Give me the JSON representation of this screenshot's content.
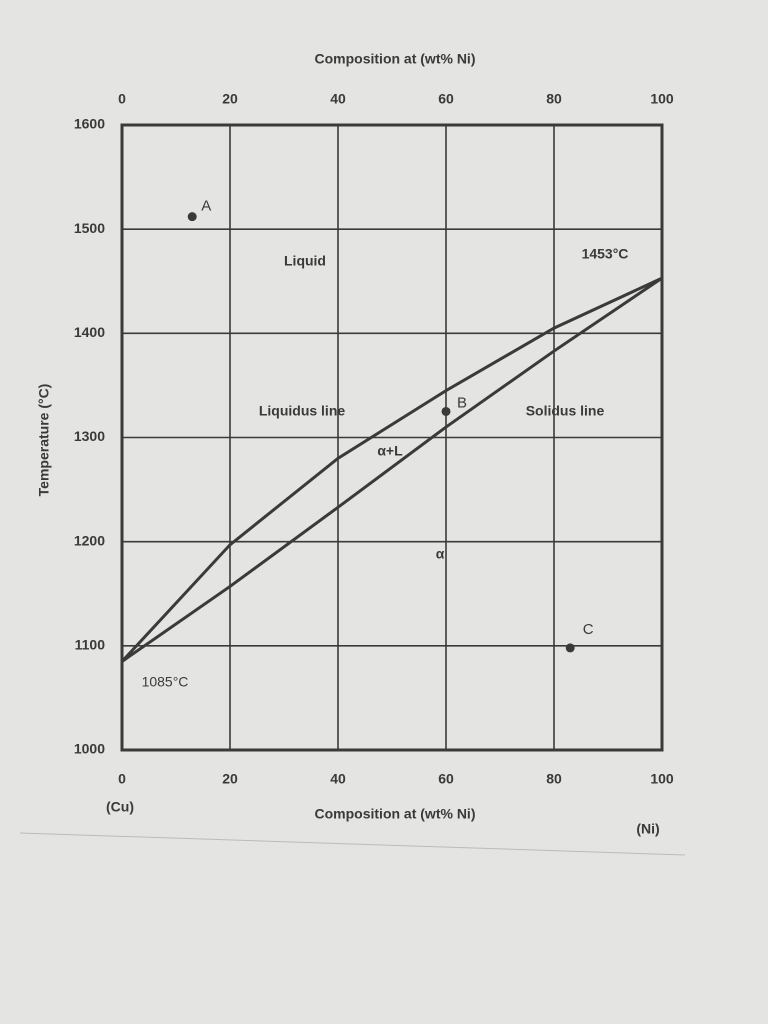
{
  "chart_data": {
    "type": "line",
    "x_label": "Composition at (wt% Ni)",
    "y_label": "Temperature (°C)",
    "x": [
      0,
      20,
      40,
      60,
      80,
      100
    ],
    "series": [
      {
        "name": "Liquidus line",
        "color": "#3a3a3a",
        "values": [
          1085,
          1197,
          1280,
          1345,
          1405,
          1453
        ]
      },
      {
        "name": "Solidus line",
        "color": "#3a3a3a",
        "values": [
          1085,
          1157,
          1233,
          1310,
          1383,
          1453
        ]
      }
    ],
    "points": {
      "labels": [
        "A",
        "B",
        "C"
      ],
      "x": [
        13,
        60,
        83
      ],
      "y": [
        1512,
        1325,
        1098
      ],
      "color": "#3a3a3a"
    },
    "annotations": [
      "Liquid",
      "α+L",
      "α",
      "1453°C",
      "1085°C",
      "(Cu)",
      "(Ni)"
    ],
    "xlim": [
      0,
      100
    ],
    "ylim": [
      1000,
      1600
    ],
    "xticks": [
      0,
      20,
      40,
      60,
      80,
      100
    ],
    "yticks": [
      1000,
      1100,
      1200,
      1300,
      1400,
      1500,
      1600
    ],
    "grid": true
  }
}
